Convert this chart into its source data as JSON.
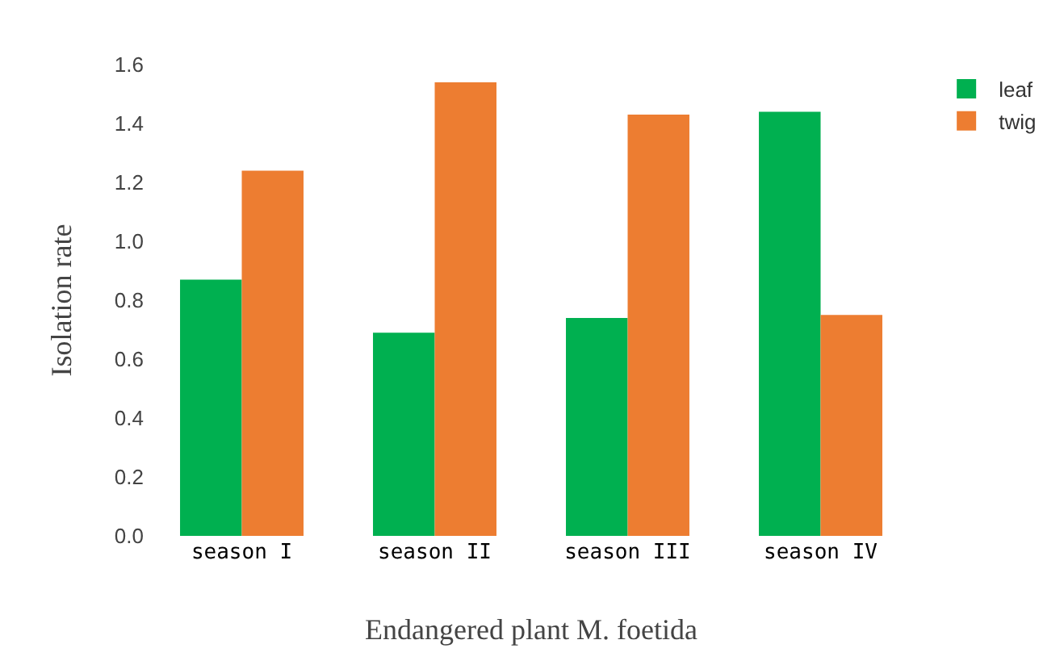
{
  "chart_data": {
    "type": "bar",
    "xlabel": "Endangered plant M. foetida",
    "ylabel": "Isolation rate",
    "categories": [
      "season I",
      "season II",
      "season III",
      "season IV"
    ],
    "series": [
      {
        "name": "leaf",
        "color": "#00b050",
        "values": [
          0.87,
          0.69,
          0.74,
          1.44
        ]
      },
      {
        "name": "twig",
        "color": "#ed7d31",
        "values": [
          1.24,
          1.54,
          1.43,
          0.75
        ]
      }
    ],
    "ylim": [
      0,
      1.6
    ],
    "yticks": [
      {
        "value": 0,
        "label": "0.0"
      },
      {
        "value": 0.2,
        "label": "0.2"
      },
      {
        "value": 0.4,
        "label": "0.4"
      },
      {
        "value": 0.6,
        "label": "0.6"
      },
      {
        "value": 0.8,
        "label": "0.8"
      },
      {
        "value": 1,
        "label": "1.0"
      },
      {
        "value": 1.2,
        "label": "1.2"
      },
      {
        "value": 1.4,
        "label": "1.4"
      },
      {
        "value": 1.6,
        "label": "1.6"
      }
    ],
    "grid": false,
    "legend": "top right"
  }
}
